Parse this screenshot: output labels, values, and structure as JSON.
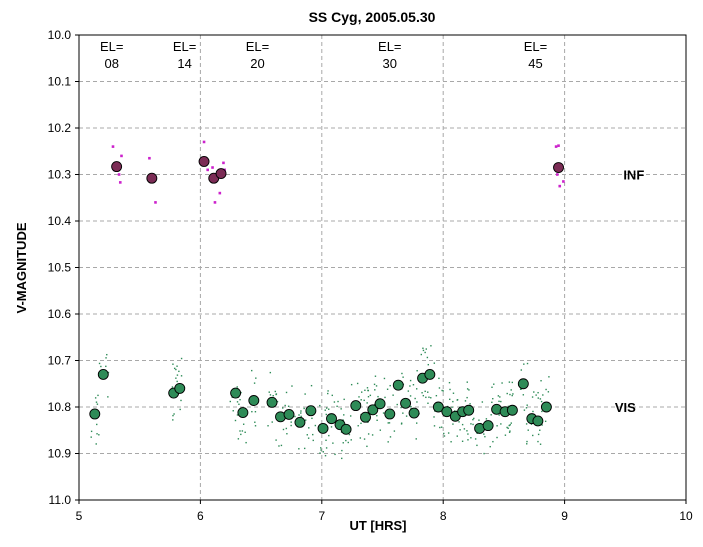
{
  "chart_data": {
    "type": "scatter",
    "title": "SS Cyg, 2005.05.30",
    "xlabel": "UT [HRS]",
    "ylabel": "V-MAGNITUDE",
    "xlim": [
      5,
      10
    ],
    "ylim": [
      10.0,
      11.0
    ],
    "y_inverted": true,
    "grid": true,
    "x_ticks": [
      "5",
      "6",
      "7",
      "8",
      "9",
      "10"
    ],
    "y_ticks": [
      "10.0",
      "10.1",
      "10.2",
      "10.3",
      "10.4",
      "10.5",
      "10.6",
      "10.7",
      "10.8",
      "10.9",
      "11.0"
    ],
    "annotations": [
      {
        "line1": "EL=",
        "line2": "08",
        "x": 5.27
      },
      {
        "line1": "EL=",
        "line2": "14",
        "x": 5.87
      },
      {
        "line1": "EL=",
        "line2": "20",
        "x": 6.47
      },
      {
        "line1": "EL=",
        "line2": "30",
        "x": 7.56
      },
      {
        "line1": "EL=",
        "line2": "45",
        "x": 8.76
      }
    ],
    "series": [
      {
        "name": "INF",
        "label_at": [
          9.57,
          10.3
        ],
        "color": "#7b2c55",
        "points": [
          [
            5.31,
            10.283
          ],
          [
            5.6,
            10.308
          ],
          [
            6.03,
            10.272
          ],
          [
            6.11,
            10.308
          ],
          [
            6.17,
            10.298
          ],
          [
            8.95,
            10.285
          ]
        ],
        "scatter_color": "#cc22cc",
        "scatter": [
          [
            5.28,
            10.24
          ],
          [
            5.33,
            10.3
          ],
          [
            5.35,
            10.26
          ],
          [
            5.29,
            10.29
          ],
          [
            5.34,
            10.317
          ],
          [
            5.58,
            10.265
          ],
          [
            5.63,
            10.36
          ],
          [
            6.03,
            10.23
          ],
          [
            6.06,
            10.29
          ],
          [
            6.08,
            10.31
          ],
          [
            6.1,
            10.285
          ],
          [
            6.12,
            10.36
          ],
          [
            6.14,
            10.295
          ],
          [
            6.16,
            10.34
          ],
          [
            6.19,
            10.275
          ],
          [
            6.2,
            10.29
          ],
          [
            6.13,
            10.31
          ],
          [
            8.93,
            10.24
          ],
          [
            8.95,
            10.238
          ],
          [
            8.94,
            10.3
          ],
          [
            8.96,
            10.325
          ],
          [
            8.99,
            10.315
          ]
        ]
      },
      {
        "name": "VIS",
        "label_at": [
          9.5,
          10.8
        ],
        "color": "#2e8b57",
        "points": [
          [
            5.13,
            10.815
          ],
          [
            5.2,
            10.73
          ],
          [
            5.78,
            10.77
          ],
          [
            5.83,
            10.76
          ],
          [
            6.29,
            10.77
          ],
          [
            6.35,
            10.812
          ],
          [
            6.44,
            10.786
          ],
          [
            6.59,
            10.79
          ],
          [
            6.66,
            10.821
          ],
          [
            6.73,
            10.816
          ],
          [
            6.82,
            10.833
          ],
          [
            6.91,
            10.808
          ],
          [
            7.01,
            10.846
          ],
          [
            7.08,
            10.825
          ],
          [
            7.15,
            10.838
          ],
          [
            7.2,
            10.848
          ],
          [
            7.28,
            10.797
          ],
          [
            7.36,
            10.822
          ],
          [
            7.42,
            10.806
          ],
          [
            7.48,
            10.793
          ],
          [
            7.56,
            10.815
          ],
          [
            7.63,
            10.753
          ],
          [
            7.69,
            10.792
          ],
          [
            7.76,
            10.813
          ],
          [
            7.83,
            10.738
          ],
          [
            7.89,
            10.73
          ],
          [
            7.96,
            10.8
          ],
          [
            8.03,
            10.81
          ],
          [
            8.1,
            10.82
          ],
          [
            8.16,
            10.81
          ],
          [
            8.21,
            10.807
          ],
          [
            8.3,
            10.846
          ],
          [
            8.37,
            10.84
          ],
          [
            8.44,
            10.805
          ],
          [
            8.51,
            10.81
          ],
          [
            8.57,
            10.807
          ],
          [
            8.66,
            10.75
          ],
          [
            8.73,
            10.825
          ],
          [
            8.78,
            10.83
          ],
          [
            8.85,
            10.8
          ]
        ],
        "scatter_color": "#2e8b57"
      }
    ]
  }
}
